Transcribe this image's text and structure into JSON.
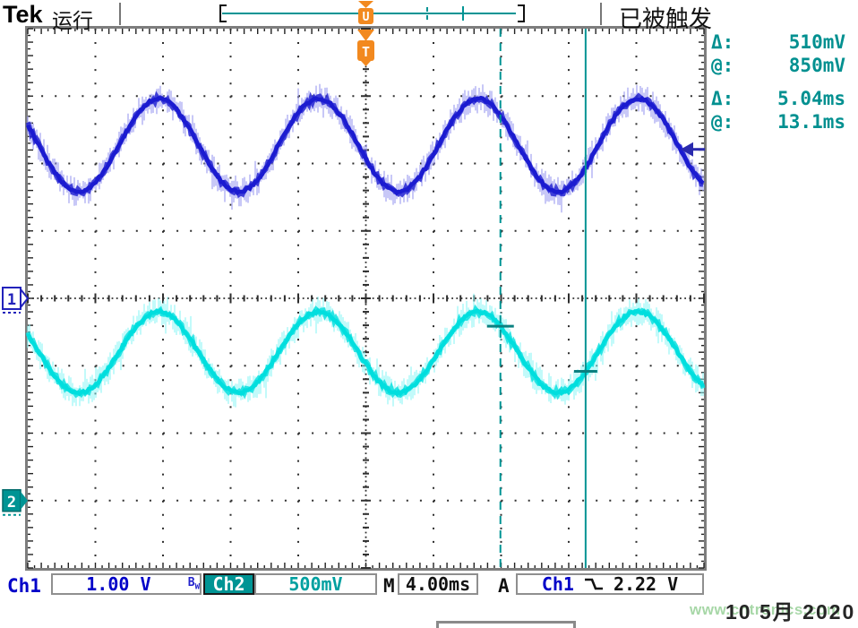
{
  "header": {
    "brand": "Tek",
    "run_status": "运行",
    "trigger_status": "已被触发",
    "trigger_pos_marker": "U",
    "trigger_marker": "T"
  },
  "measurements": {
    "rows": [
      {
        "label": "Δ:",
        "value": "510mV"
      },
      {
        "label": "@:",
        "value": "850mV"
      },
      {
        "label": "Δ:",
        "value": "5.04ms"
      },
      {
        "label": "@:",
        "value": "13.1ms"
      }
    ],
    "color": "#019090"
  },
  "channel_markers": {
    "ch1": "1",
    "ch2": "2"
  },
  "status_bar": {
    "ch1_label": "Ch1",
    "ch1_scale": "1.00 V",
    "bw_limit": {
      "b": "B",
      "w": "W"
    },
    "ch2_label": "Ch2",
    "ch2_scale": "500mV",
    "timebase_label": "M",
    "timebase_value": "4.00ms",
    "trigger_label": "A",
    "trigger_source": "Ch1",
    "trigger_level": "2.22 V"
  },
  "footer": {
    "date": "10 5月 2020",
    "watermark": "www.cntronics.com"
  },
  "colors": {
    "accent_teal": "#009494",
    "ch1_blue": "#0000c8",
    "marker_orange": "#f2891f"
  },
  "chart_data": {
    "type": "line",
    "subtype": "oscilloscope",
    "x_axis": {
      "units": "ms/div",
      "scale_ms_per_div": 4.0,
      "divisions": 10
    },
    "y_axis": {
      "divisions": 8
    },
    "series": [
      {
        "name": "Ch1",
        "volts_per_div": "1.00 V",
        "period_ms": 9.45,
        "amplitude_div": 0.69,
        "center_from_top_div": 1.73,
        "crest_at_div": 4.3,
        "ground_ref_div": 4.0,
        "color": "#1b1bd0",
        "fuzz_color": "#9a9af0"
      },
      {
        "name": "Ch2",
        "volts_per_div": "500mV",
        "period_ms": 9.45,
        "amplitude_div": 0.6,
        "center_from_top_div": 4.8,
        "crest_at_div": 4.3,
        "ground_ref_div": 7.0,
        "color": "#00dede",
        "fuzz_color": "#90f6f6"
      }
    ],
    "cursors": {
      "style": "vertical-time",
      "x1_div": 6.99,
      "x2_div": 8.25,
      "delta_time": "5.04ms",
      "at_time": "13.1ms",
      "delta_volt": "510mV",
      "at_volt": "850mV",
      "color": "#009494"
    },
    "trigger": {
      "source": "Ch1",
      "level": "2.22 V",
      "slope": "falling",
      "level_div_from_top": 1.79,
      "position_div": 5.0
    }
  }
}
